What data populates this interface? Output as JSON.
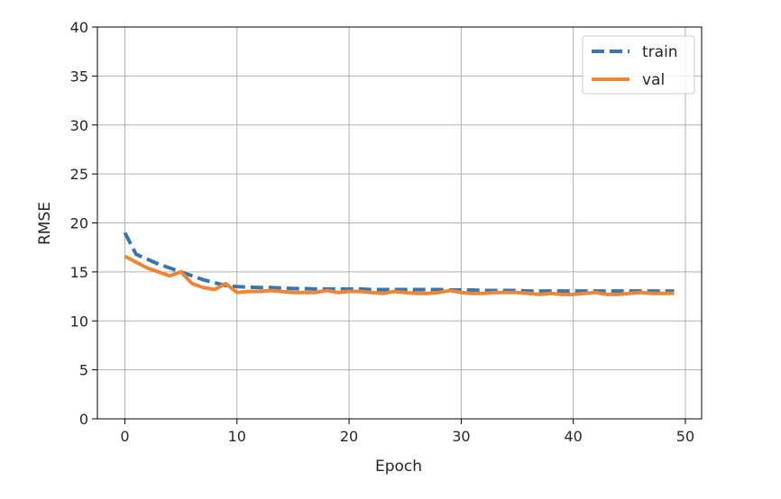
{
  "chart_data": {
    "type": "line",
    "title": "",
    "xlabel": "Epoch",
    "ylabel": "RMSE",
    "xlim": [
      -2.45,
      51.45
    ],
    "ylim": [
      0,
      40
    ],
    "xticks": [
      0,
      10,
      20,
      30,
      40,
      50
    ],
    "yticks": [
      0,
      5,
      10,
      15,
      20,
      25,
      30,
      35,
      40
    ],
    "grid": true,
    "legend_position": "top-right",
    "x": [
      0,
      1,
      2,
      3,
      4,
      5,
      6,
      7,
      8,
      9,
      10,
      11,
      12,
      13,
      14,
      15,
      16,
      17,
      18,
      19,
      20,
      21,
      22,
      23,
      24,
      25,
      26,
      27,
      28,
      29,
      30,
      31,
      32,
      33,
      34,
      35,
      36,
      37,
      38,
      39,
      40,
      41,
      42,
      43,
      44,
      45,
      46,
      47,
      48,
      49
    ],
    "series": [
      {
        "name": "train",
        "color": "#3b75af",
        "style": "dashed",
        "values": [
          19.0,
          16.8,
          16.3,
          15.8,
          15.4,
          15.0,
          14.6,
          14.2,
          13.9,
          13.6,
          13.5,
          13.45,
          13.4,
          13.4,
          13.35,
          13.3,
          13.3,
          13.25,
          13.25,
          13.25,
          13.25,
          13.25,
          13.2,
          13.2,
          13.2,
          13.2,
          13.2,
          13.2,
          13.2,
          13.15,
          13.15,
          13.15,
          13.1,
          13.1,
          13.1,
          13.1,
          13.05,
          13.05,
          13.05,
          13.05,
          13.05,
          13.05,
          13.05,
          13.05,
          13.05,
          13.05,
          13.05,
          13.05,
          13.05,
          13.05
        ]
      },
      {
        "name": "val",
        "color": "#ef8636",
        "style": "solid",
        "values": [
          16.6,
          16.0,
          15.4,
          15.0,
          14.6,
          15.0,
          13.8,
          13.4,
          13.2,
          13.8,
          12.9,
          13.0,
          13.0,
          13.1,
          13.0,
          12.9,
          12.9,
          12.9,
          13.1,
          12.9,
          13.0,
          13.0,
          12.9,
          12.8,
          13.0,
          12.9,
          12.8,
          12.8,
          12.9,
          13.1,
          12.9,
          12.8,
          12.8,
          12.9,
          12.9,
          12.9,
          12.8,
          12.7,
          12.8,
          12.7,
          12.7,
          12.8,
          12.9,
          12.7,
          12.7,
          12.8,
          12.9,
          12.8,
          12.8,
          12.8
        ]
      }
    ]
  }
}
